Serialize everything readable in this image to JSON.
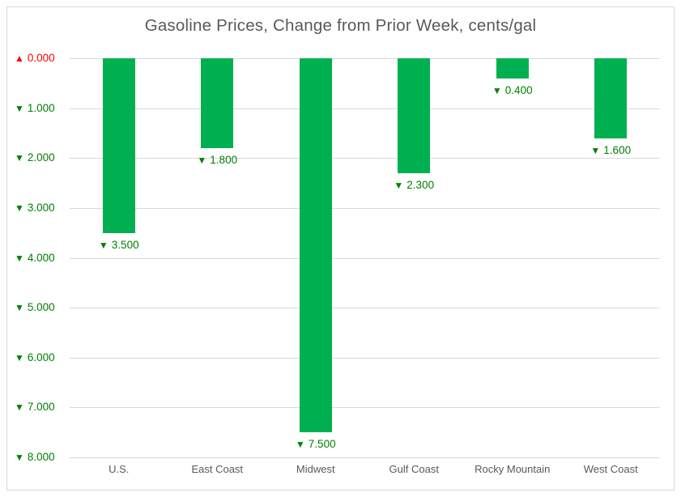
{
  "chart_data": {
    "type": "bar",
    "title": "Gasoline Prices, Change from Prior Week, cents/gal",
    "xlabel": "",
    "ylabel": "",
    "ylim": [
      -8,
      0
    ],
    "grid": true,
    "legend": false,
    "categories": [
      "U.S.",
      "East Coast",
      "Midwest",
      "Gulf Coast",
      "Rocky Mountain",
      "West Coast"
    ],
    "values": [
      -3.5,
      -1.8,
      -7.5,
      -2.3,
      -0.4,
      -1.6
    ],
    "data_labels": [
      {
        "arrow": "▼",
        "text": "3.500"
      },
      {
        "arrow": "▼",
        "text": "1.800"
      },
      {
        "arrow": "▼",
        "text": "7.500"
      },
      {
        "arrow": "▼",
        "text": "2.300"
      },
      {
        "arrow": "▼",
        "text": "0.400"
      },
      {
        "arrow": "▼",
        "text": "1.600"
      }
    ],
    "yticks": [
      {
        "value": 0,
        "arrow": "▲",
        "label": "0.000",
        "color": "#FF0000"
      },
      {
        "value": -1,
        "arrow": "▼",
        "label": "1.000",
        "color": "#008000"
      },
      {
        "value": -2,
        "arrow": "▼",
        "label": "2.000",
        "color": "#008000"
      },
      {
        "value": -3,
        "arrow": "▼",
        "label": "3.000",
        "color": "#008000"
      },
      {
        "value": -4,
        "arrow": "▼",
        "label": "4.000",
        "color": "#008000"
      },
      {
        "value": -5,
        "arrow": "▼",
        "label": "5.000",
        "color": "#008000"
      },
      {
        "value": -6,
        "arrow": "▼",
        "label": "6.000",
        "color": "#008000"
      },
      {
        "value": -7,
        "arrow": "▼",
        "label": "7.000",
        "color": "#008000"
      },
      {
        "value": -8,
        "arrow": "▼",
        "label": "8.000",
        "color": "#008000"
      }
    ],
    "colors": {
      "bar": "#00B050",
      "negative_label": "#008000",
      "zero_label": "#FF0000",
      "grid": "#D9D9D9",
      "axis_text": "#595959",
      "border": "#D9D9D9",
      "background": "#FFFFFF"
    }
  }
}
